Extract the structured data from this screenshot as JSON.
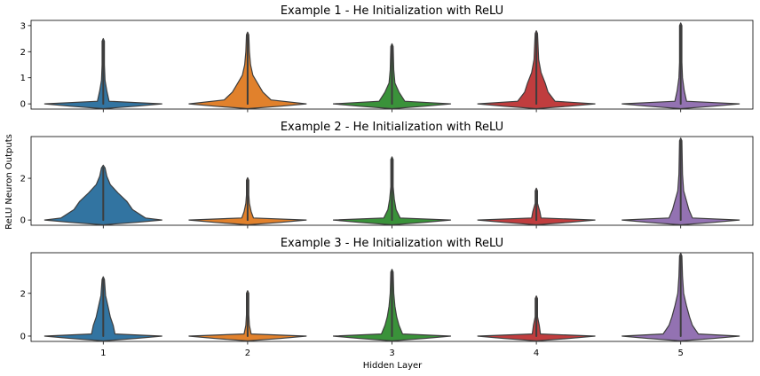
{
  "chart_data": {
    "type": "violin",
    "xlabel": "Hidden Layer",
    "ylabel": "ReLU Neuron Outputs",
    "categories": [
      "1",
      "2",
      "3",
      "4",
      "5"
    ],
    "colors": [
      "#3274a1",
      "#e1812c",
      "#3a923a",
      "#c03d3e",
      "#9372b2"
    ],
    "panels": [
      {
        "title": "Example 1 - He Initialization with ReLU",
        "ylim": [
          -0.2,
          3.2
        ],
        "yticks": [
          "0",
          "1",
          "2",
          "3"
        ],
        "series": [
          {
            "name": "1",
            "max": 2.4,
            "density": [
              [
                0.0,
                1.0
              ],
              [
                0.1,
                0.1
              ],
              [
                0.5,
                0.06
              ],
              [
                0.9,
                0.03
              ],
              [
                1.5,
                0.02
              ],
              [
                2.4,
                0.02
              ]
            ]
          },
          {
            "name": "2",
            "max": 2.65,
            "density": [
              [
                0.0,
                1.0
              ],
              [
                0.15,
                0.4
              ],
              [
                0.45,
                0.26
              ],
              [
                0.75,
                0.18
              ],
              [
                1.1,
                0.09
              ],
              [
                1.5,
                0.05
              ],
              [
                2.0,
                0.03
              ],
              [
                2.65,
                0.02
              ]
            ]
          },
          {
            "name": "3",
            "max": 2.2,
            "density": [
              [
                0.0,
                1.0
              ],
              [
                0.1,
                0.22
              ],
              [
                0.45,
                0.12
              ],
              [
                0.8,
                0.05
              ],
              [
                1.3,
                0.03
              ],
              [
                2.2,
                0.02
              ]
            ]
          },
          {
            "name": "4",
            "max": 2.7,
            "density": [
              [
                0.0,
                1.0
              ],
              [
                0.1,
                0.32
              ],
              [
                0.45,
                0.2
              ],
              [
                0.8,
                0.15
              ],
              [
                1.2,
                0.08
              ],
              [
                1.7,
                0.04
              ],
              [
                2.7,
                0.02
              ]
            ]
          },
          {
            "name": "5",
            "max": 3.0,
            "density": [
              [
                0.0,
                1.0
              ],
              [
                0.1,
                0.1
              ],
              [
                0.5,
                0.06
              ],
              [
                1.0,
                0.03
              ],
              [
                1.6,
                0.02
              ],
              [
                3.0,
                0.02
              ]
            ]
          }
        ]
      },
      {
        "title": "Example 2 - He Initialization with ReLU",
        "ylim": [
          -0.25,
          4.0
        ],
        "yticks": [
          "0",
          "2"
        ],
        "series": [
          {
            "name": "1",
            "max": 2.5,
            "density": [
              [
                0.0,
                1.0
              ],
              [
                0.1,
                0.72
              ],
              [
                0.5,
                0.5
              ],
              [
                0.9,
                0.4
              ],
              [
                1.3,
                0.25
              ],
              [
                1.7,
                0.12
              ],
              [
                2.1,
                0.06
              ],
              [
                2.5,
                0.03
              ]
            ]
          },
          {
            "name": "2",
            "max": 1.9,
            "density": [
              [
                0.0,
                1.0
              ],
              [
                0.1,
                0.1
              ],
              [
                0.4,
                0.06
              ],
              [
                0.8,
                0.03
              ],
              [
                1.2,
                0.02
              ],
              [
                1.9,
                0.02
              ]
            ]
          },
          {
            "name": "3",
            "max": 2.9,
            "density": [
              [
                0.0,
                1.0
              ],
              [
                0.1,
                0.14
              ],
              [
                0.5,
                0.07
              ],
              [
                1.0,
                0.04
              ],
              [
                1.6,
                0.02
              ],
              [
                2.9,
                0.02
              ]
            ]
          },
          {
            "name": "4",
            "max": 1.4,
            "density": [
              [
                0.0,
                1.0
              ],
              [
                0.1,
                0.08
              ],
              [
                0.4,
                0.06
              ],
              [
                0.8,
                0.02
              ],
              [
                1.4,
                0.02
              ]
            ]
          },
          {
            "name": "5",
            "max": 3.8,
            "density": [
              [
                0.0,
                1.0
              ],
              [
                0.1,
                0.2
              ],
              [
                0.5,
                0.14
              ],
              [
                0.9,
                0.1
              ],
              [
                1.4,
                0.05
              ],
              [
                2.2,
                0.03
              ],
              [
                3.8,
                0.02
              ]
            ]
          }
        ]
      },
      {
        "title": "Example 3 - He Initialization with ReLU",
        "ylim": [
          -0.25,
          3.9
        ],
        "yticks": [
          "0",
          "2"
        ],
        "series": [
          {
            "name": "1",
            "max": 2.65,
            "density": [
              [
                0.0,
                1.0
              ],
              [
                0.1,
                0.2
              ],
              [
                0.5,
                0.17
              ],
              [
                0.9,
                0.12
              ],
              [
                1.4,
                0.08
              ],
              [
                1.9,
                0.04
              ],
              [
                2.65,
                0.02
              ]
            ]
          },
          {
            "name": "2",
            "max": 2.0,
            "density": [
              [
                0.0,
                1.0
              ],
              [
                0.1,
                0.06
              ],
              [
                0.5,
                0.03
              ],
              [
                1.0,
                0.02
              ],
              [
                2.0,
                0.02
              ]
            ]
          },
          {
            "name": "3",
            "max": 3.0,
            "density": [
              [
                0.0,
                1.0
              ],
              [
                0.1,
                0.18
              ],
              [
                0.5,
                0.12
              ],
              [
                0.9,
                0.08
              ],
              [
                1.4,
                0.05
              ],
              [
                2.0,
                0.03
              ],
              [
                3.0,
                0.02
              ]
            ]
          },
          {
            "name": "4",
            "max": 1.75,
            "density": [
              [
                0.0,
                1.0
              ],
              [
                0.1,
                0.07
              ],
              [
                0.5,
                0.05
              ],
              [
                0.9,
                0.02
              ],
              [
                1.75,
                0.02
              ]
            ]
          },
          {
            "name": "5",
            "max": 3.75,
            "density": [
              [
                0.0,
                1.0
              ],
              [
                0.1,
                0.3
              ],
              [
                0.5,
                0.2
              ],
              [
                0.9,
                0.15
              ],
              [
                1.4,
                0.1
              ],
              [
                2.0,
                0.05
              ],
              [
                2.8,
                0.03
              ],
              [
                3.75,
                0.02
              ]
            ]
          }
        ]
      }
    ]
  }
}
